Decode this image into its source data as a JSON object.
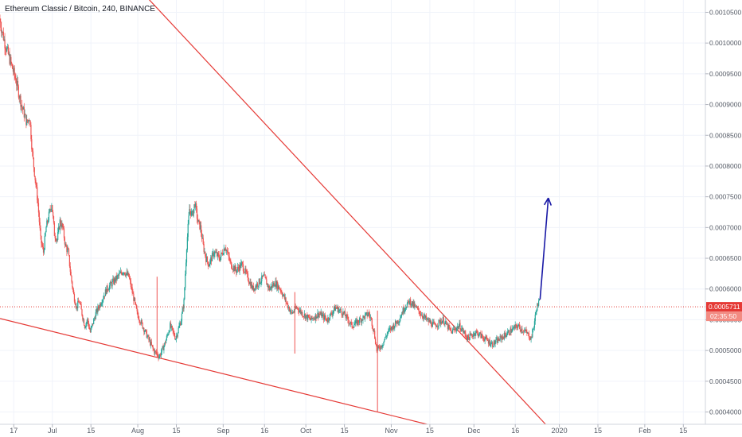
{
  "chart_data": {
    "type": "candlestick",
    "title": "Ethereum Classic / Bitcoin, 240, BINANCE",
    "ylim": [
      0.00038,
      0.00107
    ],
    "y_ticks": [
      "0.0004000",
      "0.0004500",
      "0.0005000",
      "0.0005500",
      "0.0006000",
      "0.0006500",
      "0.0007000",
      "0.0007500",
      "0.0008000",
      "0.0008500",
      "0.0009000",
      "0.0009500",
      "0.0010000",
      "0.0010500"
    ],
    "x_ticks": [
      {
        "label": "17",
        "day": 0
      },
      {
        "label": "Jul",
        "day": 14
      },
      {
        "label": "15",
        "day": 28
      },
      {
        "label": "Aug",
        "day": 45
      },
      {
        "label": "15",
        "day": 59
      },
      {
        "label": "Sep",
        "day": 76
      },
      {
        "label": "16",
        "day": 91
      },
      {
        "label": "Oct",
        "day": 106
      },
      {
        "label": "15",
        "day": 120
      },
      {
        "label": "Nov",
        "day": 137
      },
      {
        "label": "15",
        "day": 151
      },
      {
        "label": "Dec",
        "day": 167
      },
      {
        "label": "16",
        "day": 182
      },
      {
        "label": "2020",
        "day": 198
      },
      {
        "label": "15",
        "day": 212
      },
      {
        "label": "Feb",
        "day": 229
      },
      {
        "label": "15",
        "day": 243
      }
    ],
    "x_range_days": [
      -5,
      251
    ],
    "price_path": [
      [
        -5,
        0.00104
      ],
      [
        -3,
        0.001
      ],
      [
        -1,
        0.00097
      ],
      [
        1,
        0.00094
      ],
      [
        3,
        0.0009
      ],
      [
        5,
        0.00087
      ],
      [
        6,
        0.00088
      ],
      [
        7,
        0.00082
      ],
      [
        8,
        0.00078
      ],
      [
        9,
        0.00074
      ],
      [
        10,
        0.00068
      ],
      [
        11,
        0.00066
      ],
      [
        12,
        0.0007
      ],
      [
        13,
        0.00072
      ],
      [
        14,
        0.00074
      ],
      [
        15,
        0.00069
      ],
      [
        16,
        0.00068
      ],
      [
        17,
        0.00071
      ],
      [
        18,
        0.0007
      ],
      [
        19,
        0.00067
      ],
      [
        20,
        0.00066
      ],
      [
        21,
        0.00062
      ],
      [
        22,
        0.00059
      ],
      [
        23,
        0.00057
      ],
      [
        24,
        0.00058
      ],
      [
        25,
        0.00056
      ],
      [
        26,
        0.00054
      ],
      [
        27,
        0.00055
      ],
      [
        28,
        0.00053
      ],
      [
        30,
        0.00056
      ],
      [
        32,
        0.00058
      ],
      [
        34,
        0.0006
      ],
      [
        36,
        0.00061
      ],
      [
        38,
        0.00062
      ],
      [
        40,
        0.00063
      ],
      [
        42,
        0.00062
      ],
      [
        43,
        0.0006
      ],
      [
        44,
        0.00058
      ],
      [
        45,
        0.00056
      ],
      [
        47,
        0.00054
      ],
      [
        49,
        0.00052
      ],
      [
        51,
        0.0005
      ],
      [
        53,
        0.00049
      ],
      [
        55,
        0.00051
      ],
      [
        57,
        0.00054
      ],
      [
        59,
        0.00052
      ],
      [
        61,
        0.00055
      ],
      [
        62,
        0.00058
      ],
      [
        63,
        0.00067
      ],
      [
        64,
        0.00073
      ],
      [
        65,
        0.00072
      ],
      [
        66,
        0.00074
      ],
      [
        67,
        0.00071
      ],
      [
        68,
        0.0007
      ],
      [
        69,
        0.00067
      ],
      [
        70,
        0.00065
      ],
      [
        71,
        0.00064
      ],
      [
        73,
        0.00066
      ],
      [
        75,
        0.00065
      ],
      [
        77,
        0.00067
      ],
      [
        79,
        0.00064
      ],
      [
        81,
        0.00063
      ],
      [
        83,
        0.00064
      ],
      [
        85,
        0.00062
      ],
      [
        87,
        0.0006
      ],
      [
        89,
        0.00061
      ],
      [
        91,
        0.00062
      ],
      [
        93,
        0.0006
      ],
      [
        95,
        0.00061
      ],
      [
        97,
        0.0006
      ],
      [
        99,
        0.00058
      ],
      [
        101,
        0.00056
      ],
      [
        103,
        0.00057
      ],
      [
        105,
        0.00056
      ],
      [
        108,
        0.00055
      ],
      [
        111,
        0.00056
      ],
      [
        114,
        0.00055
      ],
      [
        117,
        0.00057
      ],
      [
        120,
        0.00056
      ],
      [
        123,
        0.00054
      ],
      [
        126,
        0.00055
      ],
      [
        129,
        0.00056
      ],
      [
        130,
        0.00055
      ],
      [
        131,
        0.00053
      ],
      [
        132,
        0.0005
      ],
      [
        134,
        0.00051
      ],
      [
        136,
        0.00053
      ],
      [
        138,
        0.00054
      ],
      [
        140,
        0.00055
      ],
      [
        142,
        0.00057
      ],
      [
        144,
        0.00058
      ],
      [
        146,
        0.00057
      ],
      [
        148,
        0.00056
      ],
      [
        150,
        0.00055
      ],
      [
        153,
        0.00054
      ],
      [
        156,
        0.00055
      ],
      [
        159,
        0.00053
      ],
      [
        162,
        0.00054
      ],
      [
        165,
        0.00052
      ],
      [
        168,
        0.00053
      ],
      [
        171,
        0.00052
      ],
      [
        174,
        0.00051
      ],
      [
        177,
        0.00052
      ],
      [
        180,
        0.00053
      ],
      [
        183,
        0.00054
      ],
      [
        186,
        0.00053
      ],
      [
        188,
        0.00052
      ],
      [
        189,
        0.00054
      ],
      [
        190,
        0.00057
      ],
      [
        191,
        0.00058
      ]
    ],
    "spikes": [
      {
        "day": 102,
        "low": 0.000495,
        "high": 0.000595
      },
      {
        "day": 132,
        "low": 0.0004,
        "high": 0.000565
      },
      {
        "day": 52,
        "low": 0.00049,
        "high": 0.00062
      }
    ],
    "trendlines": [
      {
        "from": [
          -5,
          0.000552
        ],
        "to": [
          150,
          0.00038
        ],
        "color": "#e53935"
      },
      {
        "from": [
          43,
          0.0011
        ],
        "to": [
          193,
          0.00038
        ],
        "color": "#e53935"
      }
    ],
    "projection_arrow": {
      "from": [
        191,
        0.000583
      ],
      "to": [
        194,
        0.000748
      ],
      "color": "#1a1aa6"
    },
    "current_price_line": 0.0005711,
    "current_price_label": "0.0005711",
    "countdown_label": "02:35:50",
    "colors": {
      "up": "#26a69a",
      "down": "#ef5350",
      "grid": "#f0f3fa",
      "price_line": "#e53935"
    }
  }
}
